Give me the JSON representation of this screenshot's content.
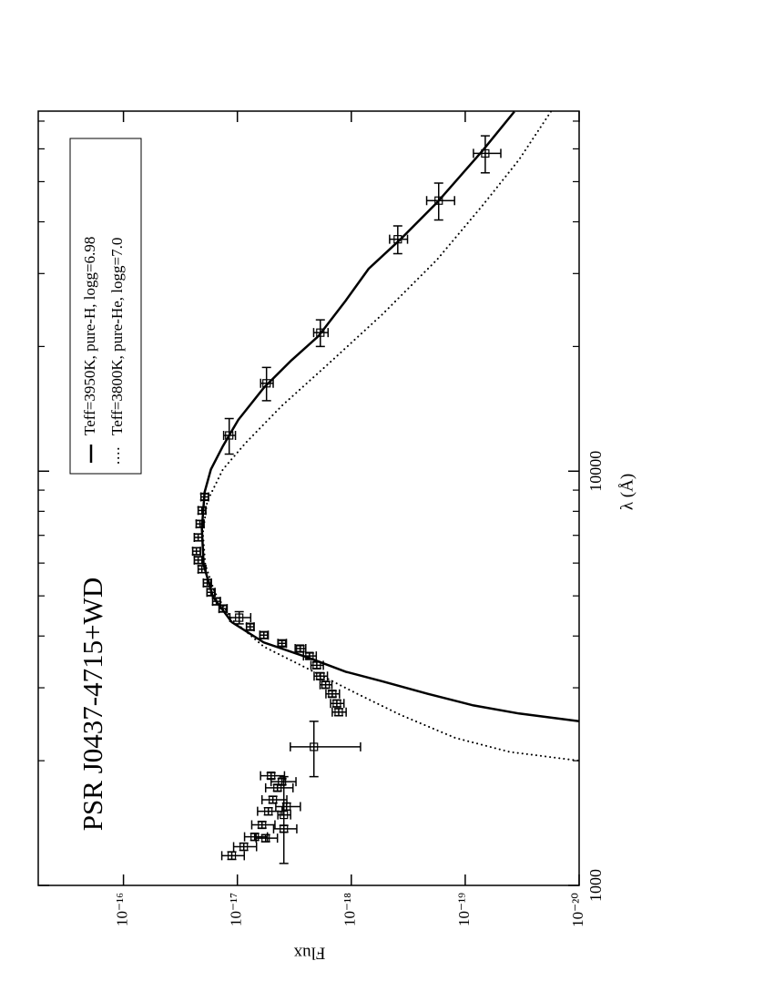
{
  "chart_data": {
    "type": "scatter",
    "title": "PSR J0437-4715+WD",
    "x_label": "λ (Å)",
    "y_label": "Flux",
    "x_log": true,
    "y_log": true,
    "xlim": [
      1000,
      74000
    ],
    "ylim": [
      1e-20,
      5.6e-16
    ],
    "xticks": [
      1000,
      10000
    ],
    "xticks_minor": [
      2000,
      3000,
      4000,
      5000,
      6000,
      7000,
      8000,
      9000,
      20000,
      30000,
      40000,
      50000,
      60000,
      70000
    ],
    "yticks": [
      {
        "value": 1e-20,
        "label": "10⁻²⁰"
      },
      {
        "value": 1e-19,
        "label": "10⁻¹⁹"
      },
      {
        "value": 1e-18,
        "label": "10⁻¹⁸"
      },
      {
        "value": 1e-17,
        "label": "10⁻¹⁷"
      },
      {
        "value": 1e-16,
        "label": "10⁻¹⁶"
      }
    ],
    "series": [
      {
        "type": "errorbar",
        "color": "#000000",
        "x": [
          58500,
          45000,
          36300,
          21600,
          16300,
          12200,
          8670,
          8040,
          7460,
          6920,
          6410,
          6100,
          5800,
          5370,
          5100,
          4850,
          4660,
          4430,
          4210,
          4020,
          3840,
          3730,
          3580,
          3400,
          3200,
          3050,
          2900,
          2750,
          2620,
          2160,
          1840,
          1780,
          1720,
          1610,
          1550,
          1510,
          1480,
          1400,
          1370,
          1310,
          1300,
          1240,
          1180
        ],
        "values": [
          6.67e-20,
          1.71e-19,
          3.91e-19,
          1.87e-18,
          5.55e-18,
          1.18e-17,
          1.94e-17,
          2.05e-17,
          2.13e-17,
          2.21e-17,
          2.29e-17,
          2.21e-17,
          2.05e-17,
          1.84e-17,
          1.71e-17,
          1.53e-17,
          1.34e-17,
          9.64e-18,
          7.73e-18,
          5.86e-18,
          4.06e-18,
          2.81e-18,
          2.33e-18,
          2.01e-18,
          1.87e-18,
          1.68e-18,
          1.47e-18,
          1.34e-18,
          1.29e-18,
          2.13e-18,
          5.06e-18,
          4.06e-18,
          4.45e-18,
          4.88e-18,
          3.7e-18,
          5.35e-18,
          3.91e-18,
          6.08e-18,
          3.91e-18,
          7.05e-18,
          5.65e-18,
          8.79e-18,
          1.12e-17
        ],
        "xerr": [
          6000,
          4600,
          2800,
          1600,
          1500,
          1200,
          150,
          150,
          140,
          130,
          120,
          110,
          110,
          100,
          90,
          90,
          80,
          150,
          70,
          70,
          60,
          60,
          60,
          60,
          55,
          55,
          50,
          50,
          50,
          330,
          30,
          30,
          30,
          30,
          30,
          30,
          350,
          25,
          25,
          25,
          25,
          25,
          25
        ],
        "yerr": [
          1.8e-20,
          4.7e-20,
          7e-20,
          2.7e-19,
          7e-19,
          1.4e-18,
          1.5e-18,
          1.6e-18,
          1.7e-18,
          1.8e-18,
          1.8e-18,
          1.8e-18,
          1.6e-18,
          1.5e-18,
          1.4e-18,
          1.2e-18,
          1.1e-18,
          2e-18,
          6e-19,
          5e-19,
          3.5e-19,
          3e-19,
          3e-19,
          2.5e-19,
          2.5e-19,
          2e-19,
          2e-19,
          1.8e-19,
          1.8e-19,
          1.3e-18,
          1.2e-18,
          1e-18,
          1.2e-18,
          1.2e-18,
          9e-19,
          1.3e-18,
          5e-19,
          1.4e-18,
          9e-19,
          1.6e-18,
          1.2e-18,
          2e-18,
          2.5e-18
        ]
      },
      {
        "type": "line",
        "name": "Teff=3950K, pure-H, logg=6.98",
        "style": "solid",
        "color": "#000000",
        "x": [
          73800,
          59400,
          44500,
          36300,
          30800,
          25800,
          21200,
          18500,
          15900,
          13300,
          11500,
          10100,
          8900,
          7270,
          5940,
          4980,
          4320,
          3860,
          3540,
          3280,
          3110,
          2900,
          2720,
          2600,
          2490
        ],
        "values": [
          3.7e-20,
          7.05e-20,
          1.77e-19,
          3.7e-19,
          7.05e-19,
          1.12e-18,
          1.94e-18,
          3.37e-18,
          5.86e-18,
          9.82e-18,
          1.34e-17,
          1.71e-17,
          1.94e-17,
          2.05e-17,
          1.98e-17,
          1.64e-17,
          1.12e-17,
          5.86e-18,
          2.33e-18,
          1.12e-18,
          5.35e-19,
          2.13e-19,
          8.47e-20,
          3.37e-20,
          1e-20
        ]
      },
      {
        "type": "line",
        "name": "Teff=3800K, pure-He, logg=7.0",
        "style": "dotted",
        "color": "#000000",
        "x": [
          73800,
          56500,
          43800,
          32400,
          23900,
          18100,
          14400,
          11700,
          10100,
          8460,
          7090,
          5940,
          5100,
          4390,
          3770,
          3320,
          2920,
          2580,
          2270,
          2100,
          2000
        ],
        "values": [
          1.77e-20,
          3.37e-20,
          7.05e-20,
          1.77e-19,
          5.35e-19,
          1.61e-18,
          4.06e-18,
          8.47e-18,
          1.34e-17,
          1.84e-17,
          2.01e-17,
          1.91e-17,
          1.58e-17,
          1.12e-17,
          5.86e-18,
          2.33e-18,
          9.29e-19,
          3.7e-19,
          1.22e-19,
          4.06e-20,
          1e-20
        ]
      }
    ]
  }
}
